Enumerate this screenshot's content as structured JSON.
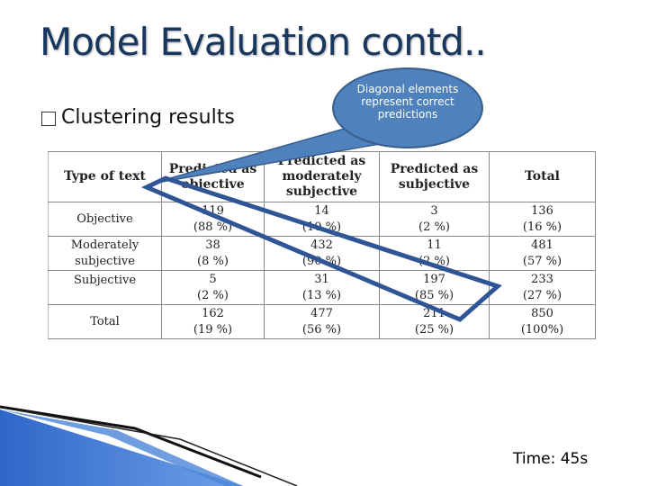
{
  "slide": {
    "title": "Model Evaluation contd..",
    "bullet": "Clustering results",
    "callout": "Diagonal elements represent correct predictions",
    "time": "Time: 45s"
  },
  "table": {
    "headers": [
      "Type of text",
      "Predicted as objective",
      "Predicted as moderately subjective",
      "Predicted as subjective",
      "Total"
    ],
    "rows": [
      {
        "label": "Objective",
        "cells": [
          [
            "119",
            "(88 %)"
          ],
          [
            "14",
            "(10 %)"
          ],
          [
            "3",
            "(2 %)"
          ],
          [
            "136",
            "(16 %)"
          ]
        ]
      },
      {
        "label1": "Moderately",
        "label2": "subjective",
        "cells": [
          [
            "38",
            "(8 %)"
          ],
          [
            "432",
            "(90 %)"
          ],
          [
            "11",
            "(2 %)"
          ],
          [
            "481",
            "(57 %)"
          ]
        ]
      },
      {
        "label": "Subjective",
        "cells": [
          [
            "5",
            "(2 %)"
          ],
          [
            "31",
            "(13 %)"
          ],
          [
            "197",
            "(85 %)"
          ],
          [
            "233",
            "(27 %)"
          ]
        ]
      },
      {
        "label": "Total",
        "cells": [
          [
            "162",
            "(19 %)"
          ],
          [
            "477",
            "(56 %)"
          ],
          [
            "211",
            "(25 %)"
          ],
          [
            "850",
            "(100%)"
          ]
        ]
      }
    ]
  },
  "colors": {
    "title": "#17375e",
    "callout_fill": "#4f81bd",
    "highlight": "#2f5597"
  }
}
